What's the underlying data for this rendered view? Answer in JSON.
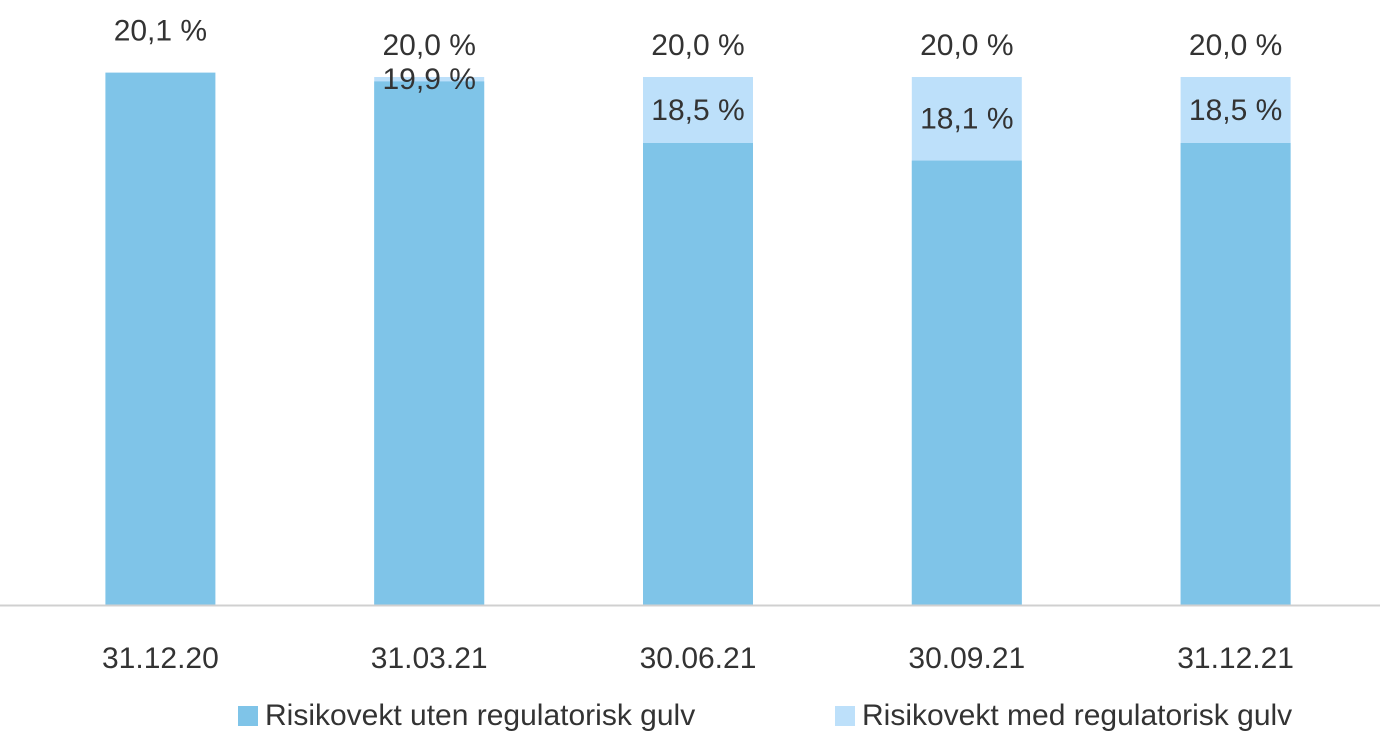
{
  "chart_data": {
    "type": "bar",
    "overlap": true,
    "categories": [
      "31.12.20",
      "31.03.21",
      "30.06.21",
      "30.09.21",
      "31.12.21"
    ],
    "series": [
      {
        "name": "Risikovekt uten regulatorisk gulv",
        "color": "#7fc4e8",
        "values": [
          20.1,
          19.9,
          18.5,
          18.1,
          18.5
        ],
        "value_labels": [
          "20,1 %",
          "19,9 %",
          "18,5 %",
          "18,1 %",
          "18,5 %"
        ]
      },
      {
        "name": "Risikovekt med regulatorisk gulv",
        "color": "#bde0fa",
        "values": [
          null,
          20.0,
          20.0,
          20.0,
          20.0
        ],
        "value_labels": [
          null,
          "20,0 %",
          "20,0 %",
          "20,0 %",
          "20,0 %"
        ]
      }
    ],
    "ylim": [
      8,
      21.5
    ],
    "legend": "bottom"
  }
}
